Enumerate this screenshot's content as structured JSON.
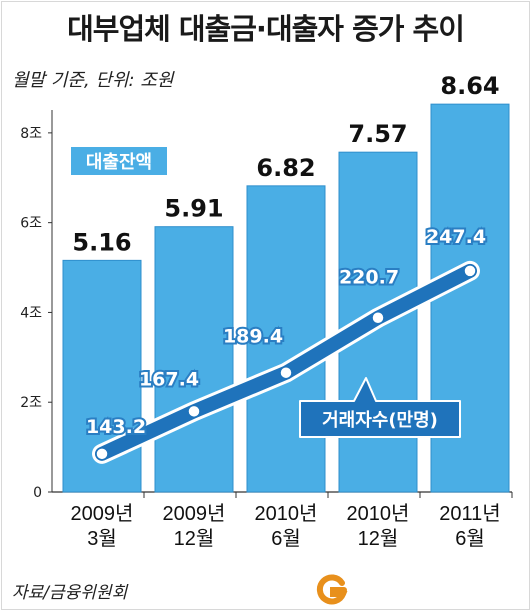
{
  "title": "대부업체 대출금·대출자 증가 추이",
  "subtitle": "월말 기준, 단위: 조원",
  "source": "자료/금융위원회",
  "colors": {
    "bar": "#4aaee5",
    "bar_edge": "#2f8fcc",
    "line": "#1f73bb",
    "line_edge": "#ffffff",
    "marker": "#ffffff",
    "label_box": "#4aaee5"
  },
  "chart_data": {
    "type": "bar",
    "categories": [
      "2009년\n3월",
      "2009년\n12월",
      "2010년\n6월",
      "2010년\n12월",
      "2011년\n6월"
    ],
    "y_ticks": [
      "0",
      "2조",
      "4조",
      "6조",
      "8조"
    ],
    "ylim": [
      0,
      9.2
    ],
    "series": [
      {
        "name": "대출잔액",
        "values": [
          5.16,
          5.91,
          6.82,
          7.57,
          8.64
        ],
        "labels": [
          "5.16",
          "5.91",
          "6.82",
          "7.57",
          "8.64"
        ]
      },
      {
        "name": "거래자수(만명)",
        "type": "line",
        "values": [
          143.2,
          167.4,
          189.4,
          220.7,
          247.4
        ],
        "labels": [
          "143.2",
          "167.4",
          "189.4",
          "220.7",
          "247.4"
        ]
      }
    ],
    "grid": false,
    "legend": "inline labels"
  }
}
